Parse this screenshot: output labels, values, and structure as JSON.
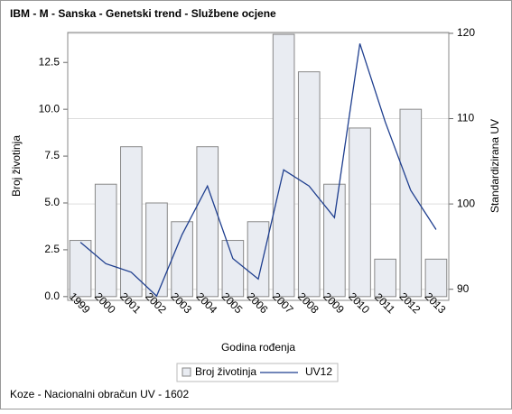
{
  "chart_data": {
    "type": "bar",
    "title": "IBM - M - Sanska - Genetski trend - Službene ocjene",
    "xlabel": "Godina rođenja",
    "ylabel": "Broj životinja",
    "y2label": "Standardizirana UV",
    "footnote": "Koze - Nacionalni obračun UV - 1602",
    "categories": [
      "1999",
      "2000",
      "2001",
      "2002",
      "2003",
      "2004",
      "2005",
      "2006",
      "2007",
      "2008",
      "2009",
      "2010",
      "2011",
      "2012",
      "2013"
    ],
    "series": [
      {
        "name": "Broj životinja",
        "type": "bar",
        "color": "#e9ecf2",
        "values": [
          3,
          6,
          8,
          5,
          4,
          8,
          3,
          4,
          14,
          12,
          6,
          9,
          2,
          10,
          2
        ]
      },
      {
        "name": "UV12",
        "type": "line",
        "axis": "y2",
        "color": "#1f3f8f",
        "values": [
          95.5,
          93,
          92,
          89.2,
          96.4,
          102.1,
          93.6,
          91.2,
          104,
          102.1,
          98.4,
          118.8,
          109.6,
          101.6,
          97
        ]
      }
    ],
    "ylim": [
      -0.2,
      14.1
    ],
    "yticks": [
      {
        "value": 0,
        "label": "0.0"
      },
      2.5,
      {
        "value": 5,
        "label": "5.0"
      },
      7.5,
      {
        "value": 10,
        "label": "10.0"
      },
      12.5
    ],
    "y2lim": [
      88.7,
      120.1
    ],
    "y2ticks": [
      90,
      100,
      110,
      120
    ],
    "grid": "y2",
    "legend": "bottom"
  }
}
